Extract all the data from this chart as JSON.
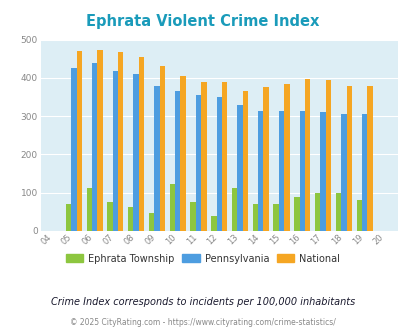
{
  "title": "Ephrata Violent Crime Index",
  "subtitle": "Crime Index corresponds to incidents per 100,000 inhabitants",
  "footer": "© 2025 CityRating.com - https://www.cityrating.com/crime-statistics/",
  "years": [
    2004,
    2005,
    2006,
    2007,
    2008,
    2009,
    2010,
    2011,
    2012,
    2013,
    2014,
    2015,
    2016,
    2017,
    2018,
    2019,
    2020
  ],
  "ephrata": [
    0,
    70,
    113,
    76,
    63,
    46,
    122,
    77,
    38,
    113,
    70,
    70,
    88,
    100,
    100,
    80,
    0
  ],
  "pennsylvania": [
    0,
    425,
    440,
    418,
    410,
    380,
    366,
    354,
    349,
    329,
    314,
    314,
    314,
    311,
    305,
    305,
    0
  ],
  "national": [
    0,
    469,
    474,
    468,
    455,
    432,
    405,
    388,
    388,
    366,
    376,
    383,
    398,
    394,
    380,
    379,
    0
  ],
  "color_ephrata": "#8dc63f",
  "color_pennsylvania": "#4d9de0",
  "color_national": "#f5a623",
  "color_title": "#1a9bba",
  "color_subtitle": "#1a1a2e",
  "color_footer": "#888888",
  "color_background": "#ddeef5",
  "ylim": [
    0,
    500
  ],
  "yticks": [
    0,
    100,
    200,
    300,
    400,
    500
  ],
  "bar_width": 0.26,
  "legend_labels": [
    "Ephrata Township",
    "Pennsylvania",
    "National"
  ]
}
